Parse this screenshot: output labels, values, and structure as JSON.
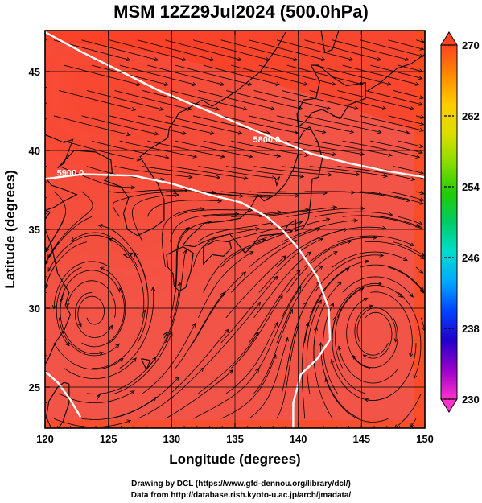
{
  "title": "MSM 12Z29Jul2024 (500.0hPa)",
  "x_axis": {
    "label": "Longitude (degrees)",
    "range": [
      120,
      150
    ],
    "ticks": [
      {
        "value": 120,
        "label": "120"
      },
      {
        "value": 125,
        "label": "125"
      },
      {
        "value": 130,
        "label": "130"
      },
      {
        "value": 135,
        "label": "135"
      },
      {
        "value": 140,
        "label": "140"
      },
      {
        "value": 145,
        "label": "145"
      },
      {
        "value": 150,
        "label": "150"
      }
    ]
  },
  "y_axis": {
    "label": "Latitude  (degrees)",
    "range": [
      22.4,
      47.6
    ],
    "ticks": [
      {
        "value": 25,
        "label": "25"
      },
      {
        "value": 30,
        "label": "30"
      },
      {
        "value": 35,
        "label": "35"
      },
      {
        "value": 40,
        "label": "40"
      },
      {
        "value": 45,
        "label": "45"
      }
    ]
  },
  "colorbar": {
    "min": 230,
    "max": 270,
    "tick_labels": [
      {
        "value": 270,
        "label": "270"
      },
      {
        "value": 262,
        "label": "262"
      },
      {
        "value": 254,
        "label": "254"
      },
      {
        "value": 246,
        "label": "246"
      },
      {
        "value": 238,
        "label": "238"
      },
      {
        "value": 230,
        "label": "230"
      }
    ],
    "colors": [
      "#ff33cc",
      "#9900cc",
      "#2200cc",
      "#0044ff",
      "#00aaff",
      "#00ddcc",
      "#00cc66",
      "#22cc00",
      "#88dd00",
      "#dddd00",
      "#ffcc00",
      "#ff8800",
      "#ff4422"
    ]
  },
  "contours": [
    {
      "label": "5800.0",
      "label_at": [
        137.5,
        40.5
      ],
      "points": [
        [
          120,
          47.5
        ],
        [
          123,
          46.2
        ],
        [
          126,
          45
        ],
        [
          129,
          43.8
        ],
        [
          132,
          42.8
        ],
        [
          135,
          41.8
        ],
        [
          138,
          40.8
        ],
        [
          141,
          39.8
        ],
        [
          144,
          39.2
        ],
        [
          147,
          38.7
        ],
        [
          150,
          38.3
        ]
      ]
    },
    {
      "label": "5900.0",
      "label_at": [
        122,
        38.4
      ],
      "points": [
        [
          120,
          38.2
        ],
        [
          123,
          38.5
        ],
        [
          127,
          38.4
        ],
        [
          130,
          37.9
        ],
        [
          133,
          37.2
        ],
        [
          135.5,
          36.7
        ],
        [
          137.5,
          35.8
        ],
        [
          138.7,
          35
        ],
        [
          140,
          33.8
        ],
        [
          141.5,
          32
        ],
        [
          142.4,
          30
        ],
        [
          142.5,
          28
        ],
        [
          141.5,
          26.8
        ],
        [
          140.2,
          25.8
        ],
        [
          139.6,
          24
        ],
        [
          139.6,
          22.4
        ]
      ]
    },
    {
      "label": "",
      "label_at": null,
      "points": [
        [
          120,
          26
        ],
        [
          121,
          25.3
        ],
        [
          122,
          24.2
        ],
        [
          122.8,
          23.1
        ]
      ]
    }
  ],
  "field_colors": {
    "base": "#f25548",
    "warm": "#ff3b1c",
    "border": "#ff4a1a",
    "contour": "#ffffff",
    "streamline": "#000000",
    "coastline": "#000000"
  },
  "credits": {
    "line1": "Drawing by DCL (https://www.gfd-dennou.org/library/dcl/)",
    "line2": "Data from http://database.rish.kyoto-u.ac.jp/arch/jmadata/"
  }
}
